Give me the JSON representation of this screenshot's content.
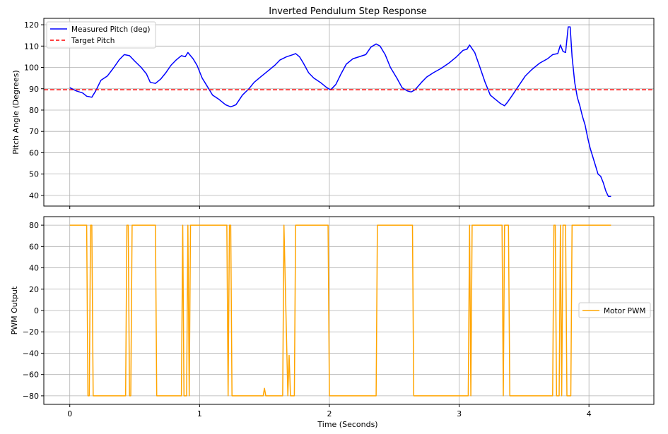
{
  "chart_data": [
    {
      "type": "line",
      "title": "Inverted Pendulum Step Response",
      "xlabel": "",
      "ylabel": "Pitch Angle (Degrees)",
      "xlim": [
        -0.2,
        4.5
      ],
      "ylim": [
        35,
        123
      ],
      "xticks": [
        0,
        1,
        2,
        3,
        4
      ],
      "yticks": [
        40,
        50,
        60,
        70,
        80,
        90,
        100,
        110,
        120
      ],
      "grid": true,
      "legend_position": "upper-left",
      "series": [
        {
          "name": "Measured Pitch (deg)",
          "color": "#0000ff",
          "style": "solid",
          "points": [
            [
              0.0,
              90.5
            ],
            [
              0.05,
              89.0
            ],
            [
              0.1,
              88.0
            ],
            [
              0.13,
              86.5
            ],
            [
              0.17,
              86.0
            ],
            [
              0.2,
              89.0
            ],
            [
              0.24,
              94.0
            ],
            [
              0.29,
              96.0
            ],
            [
              0.34,
              100.0
            ],
            [
              0.38,
              103.5
            ],
            [
              0.42,
              106.0
            ],
            [
              0.46,
              105.5
            ],
            [
              0.5,
              103.0
            ],
            [
              0.55,
              100.0
            ],
            [
              0.59,
              97.0
            ],
            [
              0.62,
              93.0
            ],
            [
              0.66,
              92.5
            ],
            [
              0.7,
              94.5
            ],
            [
              0.74,
              97.5
            ],
            [
              0.78,
              101.0
            ],
            [
              0.82,
              103.5
            ],
            [
              0.86,
              105.5
            ],
            [
              0.89,
              105.0
            ],
            [
              0.91,
              107.0
            ],
            [
              0.95,
              104.0
            ],
            [
              0.98,
              101.0
            ],
            [
              1.02,
              95.0
            ],
            [
              1.06,
              91.0
            ],
            [
              1.1,
              87.0
            ],
            [
              1.15,
              85.0
            ],
            [
              1.2,
              82.5
            ],
            [
              1.24,
              81.5
            ],
            [
              1.28,
              82.5
            ],
            [
              1.33,
              87.0
            ],
            [
              1.38,
              90.0
            ],
            [
              1.42,
              93.0
            ],
            [
              1.47,
              95.5
            ],
            [
              1.52,
              98.0
            ],
            [
              1.58,
              101.0
            ],
            [
              1.62,
              103.5
            ],
            [
              1.67,
              105.0
            ],
            [
              1.72,
              106.0
            ],
            [
              1.74,
              106.5
            ],
            [
              1.77,
              105.0
            ],
            [
              1.8,
              102.0
            ],
            [
              1.84,
              97.5
            ],
            [
              1.88,
              95.0
            ],
            [
              1.93,
              93.0
            ],
            [
              1.98,
              90.5
            ],
            [
              2.01,
              89.5
            ],
            [
              2.05,
              92.0
            ],
            [
              2.09,
              97.0
            ],
            [
              2.13,
              101.5
            ],
            [
              2.18,
              104.0
            ],
            [
              2.23,
              105.0
            ],
            [
              2.28,
              106.0
            ],
            [
              2.32,
              109.5
            ],
            [
              2.36,
              111.0
            ],
            [
              2.39,
              110.0
            ],
            [
              2.43,
              106.0
            ],
            [
              2.47,
              100.0
            ],
            [
              2.52,
              95.0
            ],
            [
              2.56,
              90.5
            ],
            [
              2.6,
              89.0
            ],
            [
              2.63,
              88.5
            ],
            [
              2.66,
              89.5
            ],
            [
              2.71,
              93.0
            ],
            [
              2.75,
              95.5
            ],
            [
              2.8,
              97.5
            ],
            [
              2.86,
              99.5
            ],
            [
              2.92,
              102.0
            ],
            [
              2.98,
              105.0
            ],
            [
              3.03,
              108.0
            ],
            [
              3.06,
              108.5
            ],
            [
              3.08,
              110.5
            ],
            [
              3.12,
              107.0
            ],
            [
              3.16,
              100.0
            ],
            [
              3.2,
              93.0
            ],
            [
              3.24,
              87.0
            ],
            [
              3.28,
              85.0
            ],
            [
              3.32,
              83.0
            ],
            [
              3.35,
              82.0
            ],
            [
              3.37,
              83.5
            ],
            [
              3.41,
              87.0
            ],
            [
              3.46,
              91.5
            ],
            [
              3.51,
              96.0
            ],
            [
              3.56,
              99.0
            ],
            [
              3.62,
              102.0
            ],
            [
              3.68,
              104.0
            ],
            [
              3.72,
              106.0
            ],
            [
              3.76,
              106.5
            ],
            [
              3.78,
              110.5
            ],
            [
              3.8,
              107.5
            ],
            [
              3.82,
              107.0
            ],
            [
              3.84,
              119.0
            ],
            [
              3.855,
              119.0
            ],
            [
              3.87,
              105.0
            ],
            [
              3.89,
              93.0
            ],
            [
              3.91,
              86.0
            ],
            [
              3.93,
              82.0
            ],
            [
              3.95,
              77.0
            ],
            [
              3.97,
              73.0
            ],
            [
              3.99,
              67.0
            ],
            [
              4.01,
              62.0
            ],
            [
              4.03,
              58.0
            ],
            [
              4.05,
              54.0
            ],
            [
              4.07,
              50.0
            ],
            [
              4.09,
              49.0
            ],
            [
              4.11,
              46.0
            ],
            [
              4.13,
              42.0
            ],
            [
              4.15,
              39.5
            ],
            [
              4.17,
              39.5
            ]
          ]
        },
        {
          "name": "Target Pitch",
          "color": "#ff0000",
          "style": "dashed",
          "points": [
            [
              -0.2,
              89.5
            ],
            [
              4.5,
              89.5
            ]
          ]
        }
      ]
    },
    {
      "type": "line",
      "title": "",
      "xlabel": "Time (Seconds)",
      "ylabel": "PWM Output",
      "xlim": [
        -0.2,
        4.5
      ],
      "ylim": [
        -88,
        88
      ],
      "xticks": [
        0,
        1,
        2,
        3,
        4
      ],
      "xtick_labels": [
        "0",
        "1",
        "2",
        "3",
        "4"
      ],
      "yticks": [
        -80,
        -60,
        -40,
        -20,
        0,
        20,
        40,
        60,
        80
      ],
      "ytick_labels": [
        "−80",
        "−60",
        "−40",
        "−20",
        "0",
        "20",
        "40",
        "60",
        "80"
      ],
      "grid": true,
      "legend_position": "center-right",
      "series": [
        {
          "name": "Motor PWM",
          "color": "#ffa500",
          "style": "solid",
          "points": [
            [
              0.0,
              80
            ],
            [
              0.13,
              80
            ],
            [
              0.14,
              -80
            ],
            [
              0.15,
              -80
            ],
            [
              0.16,
              80
            ],
            [
              0.17,
              80
            ],
            [
              0.18,
              -80
            ],
            [
              0.43,
              -80
            ],
            [
              0.44,
              80
            ],
            [
              0.45,
              80
            ],
            [
              0.46,
              -80
            ],
            [
              0.47,
              -80
            ],
            [
              0.48,
              80
            ],
            [
              0.66,
              80
            ],
            [
              0.67,
              -80
            ],
            [
              0.86,
              -80
            ],
            [
              0.87,
              80
            ],
            [
              0.88,
              -80
            ],
            [
              0.9,
              -80
            ],
            [
              0.91,
              80
            ],
            [
              0.92,
              -80
            ],
            [
              0.93,
              80
            ],
            [
              1.21,
              80
            ],
            [
              1.22,
              -80
            ],
            [
              1.23,
              80
            ],
            [
              1.24,
              80
            ],
            [
              1.25,
              -80
            ],
            [
              1.49,
              -80
            ],
            [
              1.5,
              -73
            ],
            [
              1.51,
              -80
            ],
            [
              1.64,
              -80
            ],
            [
              1.65,
              80
            ],
            [
              1.68,
              -80
            ],
            [
              1.69,
              -42
            ],
            [
              1.7,
              -80
            ],
            [
              1.73,
              -80
            ],
            [
              1.74,
              80
            ],
            [
              1.99,
              80
            ],
            [
              2.0,
              -80
            ],
            [
              2.36,
              -80
            ],
            [
              2.37,
              80
            ],
            [
              2.64,
              80
            ],
            [
              2.65,
              -80
            ],
            [
              3.07,
              -80
            ],
            [
              3.08,
              80
            ],
            [
              3.09,
              -80
            ],
            [
              3.1,
              80
            ],
            [
              3.33,
              80
            ],
            [
              3.34,
              -80
            ],
            [
              3.35,
              80
            ],
            [
              3.38,
              80
            ],
            [
              3.39,
              -80
            ],
            [
              3.72,
              -80
            ],
            [
              3.73,
              80
            ],
            [
              3.74,
              80
            ],
            [
              3.75,
              -80
            ],
            [
              3.77,
              -80
            ],
            [
              3.78,
              80
            ],
            [
              3.79,
              -80
            ],
            [
              3.8,
              80
            ],
            [
              3.82,
              80
            ],
            [
              3.83,
              -80
            ],
            [
              3.86,
              -80
            ],
            [
              3.87,
              80
            ],
            [
              4.17,
              80
            ]
          ]
        }
      ]
    }
  ]
}
